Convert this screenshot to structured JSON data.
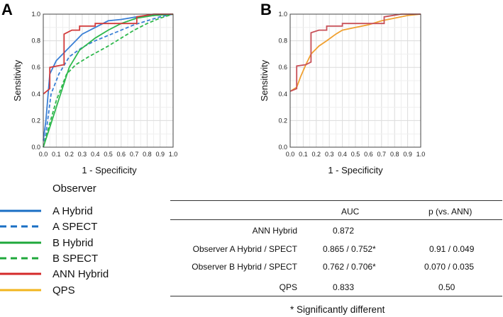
{
  "chart_data": [
    {
      "type": "line",
      "panel": "A",
      "xlabel": "1 - Specificity",
      "ylabel": "Sensitivity",
      "xlim": [
        0,
        1
      ],
      "ylim": [
        0,
        1
      ],
      "xticks": [
        "0.0",
        "0.1",
        "0.2",
        "0.3",
        "0.4",
        "0.5",
        "0.6",
        "0.7",
        "0.8",
        "0.9",
        "1.0"
      ],
      "yticks": [
        "0.0",
        "0.2",
        "0.4",
        "0.6",
        "0.8",
        "1.0"
      ],
      "grid": true,
      "series": [
        {
          "name": "A Hybrid",
          "color": "#3a7fd5",
          "dash": false,
          "points": [
            [
              0,
              0.05
            ],
            [
              0.02,
              0.2
            ],
            [
              0.05,
              0.55
            ],
            [
              0.1,
              0.65
            ],
            [
              0.2,
              0.75
            ],
            [
              0.3,
              0.85
            ],
            [
              0.4,
              0.9
            ],
            [
              0.5,
              0.95
            ],
            [
              0.6,
              0.96
            ],
            [
              0.72,
              0.98
            ],
            [
              0.85,
              0.99
            ],
            [
              1.0,
              1.0
            ]
          ]
        },
        {
          "name": "A SPECT",
          "color": "#3a7fd5",
          "dash": true,
          "points": [
            [
              0,
              0.0
            ],
            [
              0.02,
              0.1
            ],
            [
              0.06,
              0.4
            ],
            [
              0.12,
              0.55
            ],
            [
              0.2,
              0.68
            ],
            [
              0.3,
              0.75
            ],
            [
              0.4,
              0.8
            ],
            [
              0.5,
              0.84
            ],
            [
              0.6,
              0.88
            ],
            [
              0.7,
              0.92
            ],
            [
              0.8,
              0.95
            ],
            [
              0.9,
              0.98
            ],
            [
              1.0,
              1.0
            ]
          ]
        },
        {
          "name": "B Hybrid",
          "color": "#2eb84c",
          "dash": false,
          "points": [
            [
              0,
              0.0
            ],
            [
              0.05,
              0.15
            ],
            [
              0.1,
              0.3
            ],
            [
              0.2,
              0.6
            ],
            [
              0.28,
              0.73
            ],
            [
              0.4,
              0.82
            ],
            [
              0.5,
              0.88
            ],
            [
              0.6,
              0.93
            ],
            [
              0.72,
              0.97
            ],
            [
              0.85,
              0.99
            ],
            [
              1.0,
              1.0
            ]
          ]
        },
        {
          "name": "B SPECT",
          "color": "#2eb84c",
          "dash": true,
          "points": [
            [
              0,
              0.0
            ],
            [
              0.05,
              0.18
            ],
            [
              0.1,
              0.35
            ],
            [
              0.18,
              0.55
            ],
            [
              0.25,
              0.62
            ],
            [
              0.35,
              0.68
            ],
            [
              0.5,
              0.76
            ],
            [
              0.6,
              0.82
            ],
            [
              0.7,
              0.88
            ],
            [
              0.8,
              0.93
            ],
            [
              0.9,
              0.97
            ],
            [
              1.0,
              1.0
            ]
          ]
        },
        {
          "name": "ANN Hybrid",
          "color": "#d23a3a",
          "dash": false,
          "points": [
            [
              0,
              0.4
            ],
            [
              0.05,
              0.44
            ],
            [
              0.05,
              0.6
            ],
            [
              0.16,
              0.62
            ],
            [
              0.16,
              0.85
            ],
            [
              0.22,
              0.88
            ],
            [
              0.28,
              0.88
            ],
            [
              0.28,
              0.91
            ],
            [
              0.4,
              0.91
            ],
            [
              0.4,
              0.93
            ],
            [
              0.72,
              0.93
            ],
            [
              0.72,
              0.98
            ],
            [
              0.85,
              1.0
            ],
            [
              1.0,
              1.0
            ]
          ]
        }
      ]
    },
    {
      "type": "line",
      "panel": "B",
      "xlabel": "1 - Specificity",
      "ylabel": "Sensitivity",
      "xlim": [
        0,
        1
      ],
      "ylim": [
        0,
        1
      ],
      "xticks": [
        "0.0",
        "0.1",
        "0.2",
        "0.3",
        "0.4",
        "0.5",
        "0.6",
        "0.7",
        "0.8",
        "0.9",
        "1.0"
      ],
      "yticks": [
        "0.0",
        "0.2",
        "0.4",
        "0.6",
        "0.8",
        "1.0"
      ],
      "grid": true,
      "series": [
        {
          "name": "QPS",
          "color": "#f0a030",
          "dash": false,
          "points": [
            [
              0,
              0.42
            ],
            [
              0.05,
              0.45
            ],
            [
              0.08,
              0.53
            ],
            [
              0.12,
              0.62
            ],
            [
              0.16,
              0.7
            ],
            [
              0.22,
              0.76
            ],
            [
              0.28,
              0.8
            ],
            [
              0.35,
              0.85
            ],
            [
              0.4,
              0.88
            ],
            [
              0.5,
              0.9
            ],
            [
              0.6,
              0.92
            ],
            [
              0.7,
              0.95
            ],
            [
              0.8,
              0.97
            ],
            [
              0.9,
              0.99
            ],
            [
              1.0,
              1.0
            ]
          ]
        },
        {
          "name": "ANN Hybrid",
          "color": "#c85058",
          "dash": false,
          "points": [
            [
              0,
              0.42
            ],
            [
              0.05,
              0.44
            ],
            [
              0.05,
              0.61
            ],
            [
              0.12,
              0.62
            ],
            [
              0.16,
              0.64
            ],
            [
              0.16,
              0.86
            ],
            [
              0.22,
              0.88
            ],
            [
              0.28,
              0.88
            ],
            [
              0.28,
              0.91
            ],
            [
              0.4,
              0.91
            ],
            [
              0.4,
              0.93
            ],
            [
              0.72,
              0.93
            ],
            [
              0.72,
              0.98
            ],
            [
              0.85,
              1.0
            ],
            [
              1.0,
              1.0
            ]
          ]
        }
      ]
    }
  ],
  "panels": {
    "a_letter": "A",
    "b_letter": "B"
  },
  "legend": {
    "title": "Observer",
    "items": [
      {
        "label": "A Hybrid",
        "color": "#1a6fc4",
        "dash": false
      },
      {
        "label": "A SPECT",
        "color": "#1a6fc4",
        "dash": true
      },
      {
        "label": "B Hybrid",
        "color": "#1fa83b",
        "dash": false
      },
      {
        "label": "B SPECT",
        "color": "#1fa83b",
        "dash": true
      },
      {
        "label": "ANN Hybrid",
        "color": "#d42a2a",
        "dash": false
      },
      {
        "label": "QPS",
        "color": "#f2b51e",
        "dash": false
      }
    ]
  },
  "table": {
    "headers": [
      "",
      "AUC",
      "p (vs. ANN)"
    ],
    "rows": [
      {
        "label": "ANN Hybrid",
        "auc": "0.872",
        "p": ""
      },
      {
        "label": "Observer A Hybrid / SPECT",
        "auc": "0.865 / 0.752*",
        "p": "0.91 / 0.049"
      },
      {
        "label": "Observer B Hybrid / SPECT",
        "auc": "0.762 / 0.706*",
        "p": "0.070 / 0.035"
      },
      {
        "label": "QPS",
        "auc": "0.833",
        "p": "0.50"
      }
    ]
  },
  "footnote": "* Significantly different"
}
